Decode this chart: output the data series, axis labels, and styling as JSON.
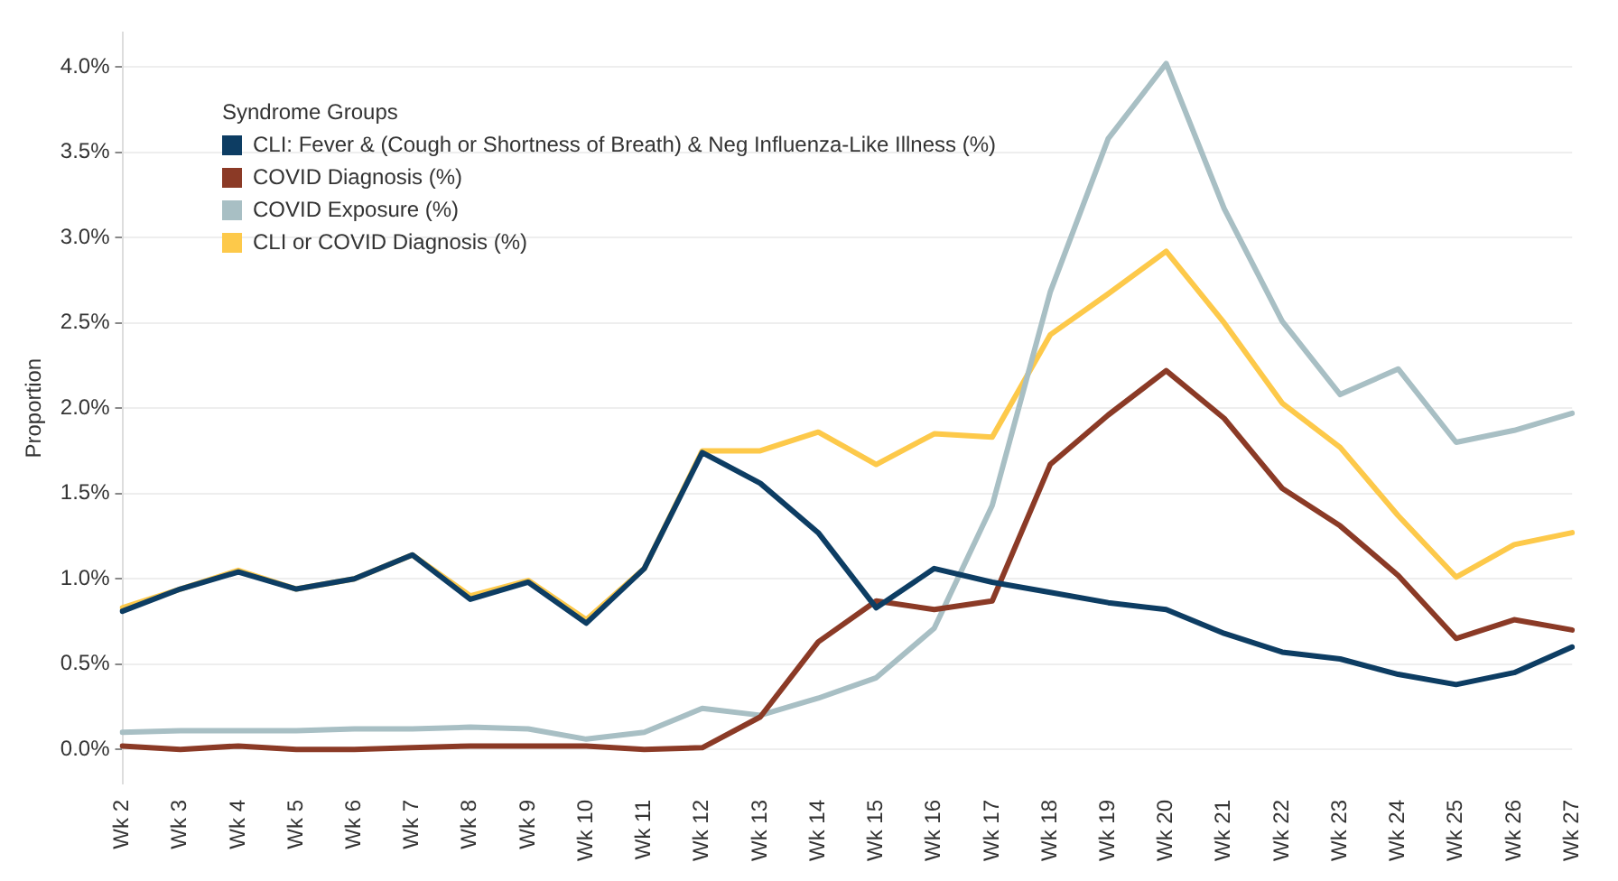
{
  "chart_data": {
    "type": "line",
    "ylabel": "Proportion",
    "legend_title": "Syndrome Groups",
    "legend": "top left",
    "grid": "y",
    "marker": "none",
    "line_style": "solid",
    "categories": [
      "Wk 2",
      "Wk 3",
      "Wk 4",
      "Wk 5",
      "Wk 6",
      "Wk 7",
      "Wk 8",
      "Wk 9",
      "Wk 10",
      "Wk 11",
      "Wk 12",
      "Wk 13",
      "Wk 14",
      "Wk 15",
      "Wk 16",
      "Wk 17",
      "Wk 18",
      "Wk 19",
      "Wk 20",
      "Wk 21",
      "Wk 22",
      "Wk 23",
      "Wk 24",
      "Wk 25",
      "Wk 26",
      "Wk 27"
    ],
    "ylim": [
      -0.2,
      4.2
    ],
    "yticks": [
      {
        "value": 0,
        "label": "0.0%"
      },
      {
        "value": 0.5,
        "label": "0.5%"
      },
      {
        "value": 1,
        "label": "1.0%"
      },
      {
        "value": 1.5,
        "label": "1.5%"
      },
      {
        "value": 2,
        "label": "2.0%"
      },
      {
        "value": 2.5,
        "label": "2.5%"
      },
      {
        "value": 3,
        "label": "3.0%"
      },
      {
        "value": 3.5,
        "label": "3.5%"
      },
      {
        "value": 4,
        "label": "4.0%"
      }
    ],
    "series": [
      {
        "name": "CLI: Fever & (Cough or Shortness of Breath) & Neg Influenza-Like Illness (%)",
        "color": "#0d3d63",
        "values": [
          0.81,
          0.94,
          1.04,
          0.94,
          1.0,
          1.14,
          0.88,
          0.98,
          0.74,
          1.06,
          1.74,
          1.56,
          1.27,
          0.83,
          1.06,
          0.98,
          0.92,
          0.86,
          0.82,
          0.68,
          0.57,
          0.53,
          0.44,
          0.38,
          0.45,
          0.6
        ]
      },
      {
        "name": "COVID Diagnosis (%)",
        "color": "#8b3a26",
        "values": [
          0.02,
          0.0,
          0.02,
          0.0,
          0.0,
          0.01,
          0.02,
          0.02,
          0.02,
          0.0,
          0.01,
          0.19,
          0.63,
          0.87,
          0.82,
          0.87,
          1.67,
          1.96,
          2.22,
          1.94,
          1.53,
          1.31,
          1.02,
          0.65,
          0.76,
          0.7
        ]
      },
      {
        "name": "COVID Exposure (%)",
        "color": "#a8bfc4",
        "values": [
          0.1,
          0.11,
          0.11,
          0.11,
          0.12,
          0.12,
          0.13,
          0.12,
          0.06,
          0.1,
          0.24,
          0.2,
          0.3,
          0.42,
          0.71,
          1.43,
          2.68,
          3.58,
          4.02,
          3.17,
          2.51,
          2.08,
          2.23,
          1.8,
          1.87,
          1.97
        ]
      },
      {
        "name": "CLI or COVID Diagnosis (%)",
        "color": "#fdc94a",
        "values": [
          0.83,
          0.94,
          1.05,
          0.94,
          1.0,
          1.14,
          0.9,
          0.99,
          0.76,
          1.06,
          1.75,
          1.75,
          1.86,
          1.67,
          1.85,
          1.83,
          2.43,
          2.67,
          2.92,
          2.5,
          2.03,
          1.77,
          1.37,
          1.01,
          1.2,
          1.27
        ]
      }
    ]
  }
}
